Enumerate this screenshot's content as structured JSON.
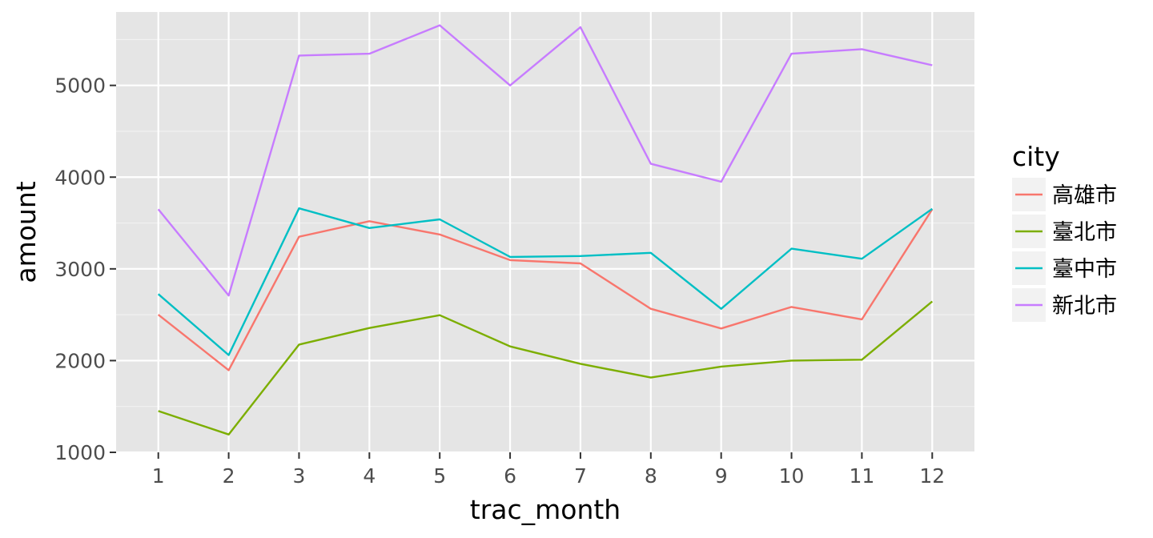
{
  "chart_data": {
    "type": "line",
    "xlabel": "trac_month",
    "ylabel": "amount",
    "x": [
      1,
      2,
      3,
      4,
      5,
      6,
      7,
      8,
      9,
      10,
      11,
      12
    ],
    "xlim": [
      0.4,
      12.6
    ],
    "ylim": [
      1000,
      5800
    ],
    "y_ticks": [
      1000,
      2000,
      3000,
      4000,
      5000
    ],
    "grid": true,
    "panel_background": "#e5e5e5",
    "legend": {
      "title": "city",
      "position": "right"
    },
    "series": [
      {
        "name": "高雄市",
        "color": "#f8766d",
        "values": [
          2500,
          1895,
          3350,
          3520,
          3375,
          3095,
          3060,
          2565,
          2350,
          2585,
          2450,
          3650
        ]
      },
      {
        "name": "臺北市",
        "color": "#7cae00",
        "values": [
          1450,
          1195,
          2175,
          2355,
          2495,
          2155,
          1965,
          1815,
          1935,
          2000,
          2010,
          2645
        ]
      },
      {
        "name": "臺中市",
        "color": "#00bfc4",
        "values": [
          2725,
          2060,
          3660,
          3445,
          3540,
          3130,
          3140,
          3175,
          2565,
          3220,
          3110,
          3655
        ]
      },
      {
        "name": "新北市",
        "color": "#c77cff",
        "values": [
          3650,
          2710,
          5325,
          5345,
          5655,
          5000,
          5635,
          4145,
          3950,
          5345,
          5395,
          5220
        ]
      }
    ]
  }
}
